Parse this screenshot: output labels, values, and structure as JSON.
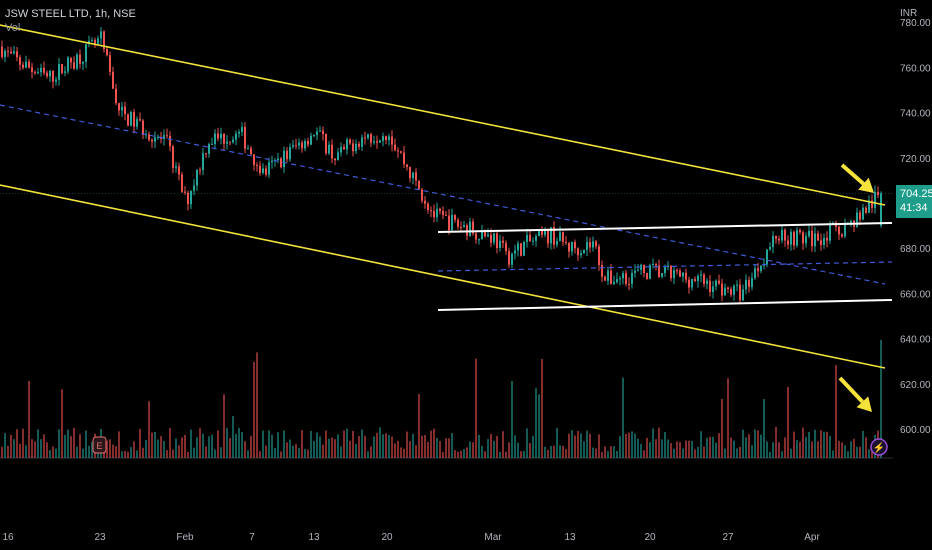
{
  "header": {
    "title": "JSW STEEL LTD, 1h, NSE",
    "volume_label": "Vol",
    "currency": "INR"
  },
  "price_label": {
    "price": "704.25",
    "countdown": "41:34"
  },
  "colors": {
    "up": "#26a69a",
    "down": "#ef5350",
    "channel": "#f2e33a",
    "range": "#ffffff",
    "midline": "#3f5ad8",
    "arrow": "#f5e23a",
    "label_bg": "#1e9e8a"
  },
  "chart_data": {
    "type": "candlestick",
    "y_ticks": [
      "760.00",
      "740.00",
      "720.00",
      "680.00",
      "660.00",
      "640.00",
      "620.00",
      "600.00"
    ],
    "x_ticks": [
      "16",
      "23",
      "Feb",
      "7",
      "13",
      "20",
      "Mar",
      "13",
      "20",
      "27",
      "Apr"
    ],
    "ylim": [
      590,
      780
    ],
    "price_path": [
      [
        "01-12",
        770
      ],
      [
        "01-16",
        765
      ],
      [
        "01-19",
        755
      ],
      [
        "01-23",
        772
      ],
      [
        "01-25",
        740
      ],
      [
        "01-30",
        726
      ],
      [
        "02-01",
        700
      ],
      [
        "02-03",
        728
      ],
      [
        "02-06",
        730
      ],
      [
        "02-08",
        713
      ],
      [
        "02-13",
        732
      ],
      [
        "02-15",
        720
      ],
      [
        "02-17",
        728
      ],
      [
        "02-20",
        732
      ],
      [
        "02-22",
        712
      ],
      [
        "02-24",
        694
      ],
      [
        "03-01",
        685
      ],
      [
        "03-03",
        676
      ],
      [
        "03-06",
        682
      ],
      [
        "03-10",
        686
      ],
      [
        "03-13",
        680
      ],
      [
        "03-15",
        682
      ],
      [
        "03-16",
        666
      ],
      [
        "03-20",
        670
      ],
      [
        "03-24",
        666
      ],
      [
        "03-28",
        660
      ],
      [
        "03-31",
        686
      ],
      [
        "04-03",
        684
      ],
      [
        "04-06",
        690
      ],
      [
        "04-09",
        704.25
      ]
    ],
    "last_price": 704.25,
    "drawings": [
      "descending channel (yellow)",
      "range box (white)",
      "channel midline (blue dashed)"
    ],
    "grid": false
  }
}
